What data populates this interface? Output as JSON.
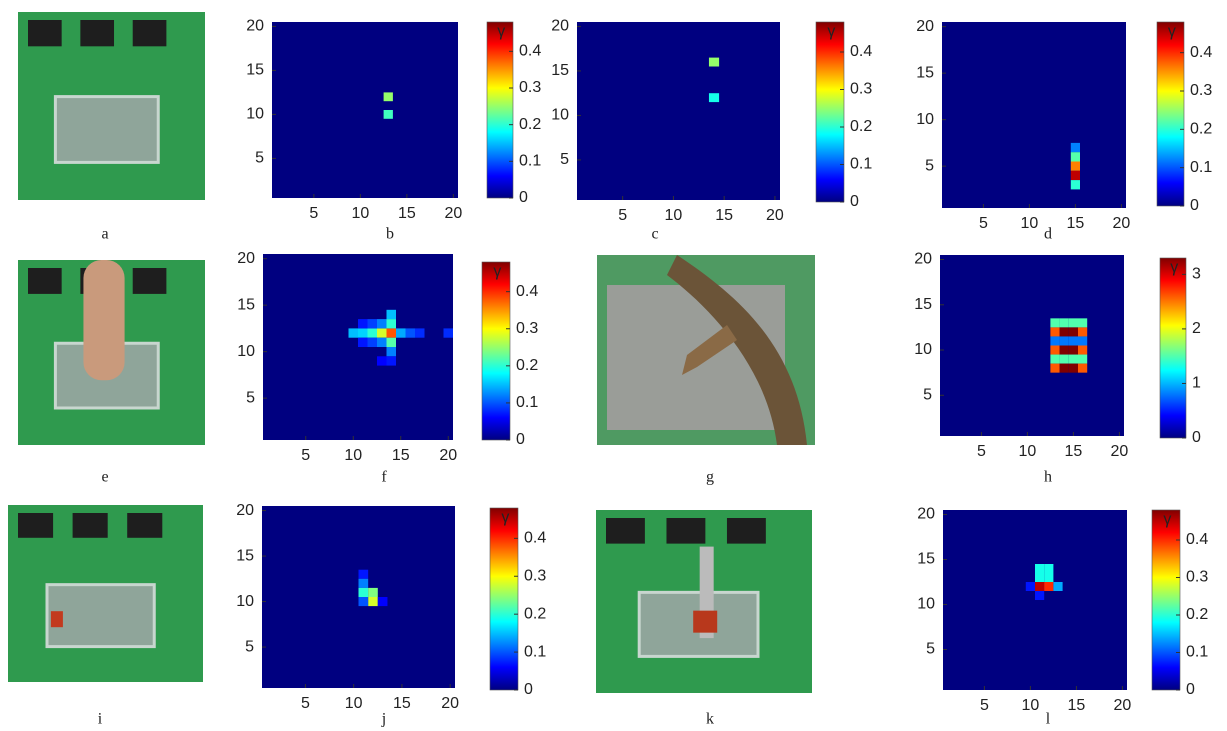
{
  "panels": [
    {
      "label": "a",
      "type": "photo"
    },
    {
      "label": "b",
      "type": "heatmap",
      "xlim": [
        0.5,
        20.5
      ],
      "ylim": [
        0.5,
        20.5
      ],
      "xticks": [
        5,
        10,
        15,
        20
      ],
      "yticks": [
        5,
        10,
        15,
        20
      ],
      "clim": [
        0,
        0.48
      ],
      "cticks": [
        0,
        0.1,
        0.2,
        0.3,
        0.4
      ],
      "colorbar_label": "γ",
      "cells": [
        [
          13,
          12,
          0.25
        ],
        [
          13,
          10,
          0.21
        ]
      ]
    },
    {
      "label": "c",
      "type": "heatmap",
      "xlim": [
        0.5,
        20.5
      ],
      "ylim": [
        0.5,
        20.5
      ],
      "xticks": [
        5,
        10,
        15,
        20
      ],
      "yticks": [
        5,
        10,
        15,
        20
      ],
      "clim": [
        0,
        0.48
      ],
      "cticks": [
        0,
        0.1,
        0.2,
        0.3,
        0.4
      ],
      "colorbar_label": "γ",
      "cells": [
        [
          14,
          16,
          0.25
        ],
        [
          14,
          12,
          0.19
        ]
      ]
    },
    {
      "label": "d",
      "type": "heatmap",
      "xlim": [
        0.5,
        20.5
      ],
      "ylim": [
        0.5,
        20.5
      ],
      "xticks": [
        5,
        10,
        15,
        20
      ],
      "yticks": [
        5,
        10,
        15,
        20
      ],
      "clim": [
        0,
        0.48
      ],
      "cticks": [
        0,
        0.1,
        0.2,
        0.3,
        0.4
      ],
      "colorbar_label": "γ",
      "cells": [
        [
          15,
          7,
          0.12
        ],
        [
          15,
          6,
          0.22
        ],
        [
          15,
          5,
          0.36
        ],
        [
          15,
          4,
          0.45
        ],
        [
          15,
          3,
          0.2
        ]
      ]
    },
    {
      "label": "e",
      "type": "photo"
    },
    {
      "label": "f",
      "type": "heatmap",
      "xlim": [
        0.5,
        20.5
      ],
      "ylim": [
        0.5,
        20.5
      ],
      "xticks": [
        5,
        10,
        15,
        20
      ],
      "yticks": [
        5,
        10,
        15,
        20
      ],
      "clim": [
        0,
        0.48
      ],
      "cticks": [
        0,
        0.1,
        0.2,
        0.3,
        0.4
      ],
      "colorbar_label": "γ",
      "cells": [
        [
          10,
          12,
          0.15
        ],
        [
          11,
          12,
          0.16
        ],
        [
          12,
          12,
          0.2
        ],
        [
          13,
          12,
          0.28
        ],
        [
          14,
          12,
          0.38
        ],
        [
          15,
          12,
          0.14
        ],
        [
          16,
          12,
          0.1
        ],
        [
          17,
          12,
          0.08
        ],
        [
          20,
          12,
          0.08
        ],
        [
          14,
          14,
          0.15
        ],
        [
          14,
          13,
          0.2
        ],
        [
          14,
          11,
          0.22
        ],
        [
          14,
          10,
          0.12
        ],
        [
          13,
          13,
          0.12
        ],
        [
          13,
          11,
          0.12
        ],
        [
          12,
          13,
          0.09
        ],
        [
          12,
          11,
          0.09
        ],
        [
          11,
          13,
          0.07
        ],
        [
          11,
          11,
          0.07
        ],
        [
          14,
          9,
          0.07
        ],
        [
          13,
          9,
          0.06
        ]
      ]
    },
    {
      "label": "g",
      "type": "photo"
    },
    {
      "label": "h",
      "type": "heatmap",
      "xlim": [
        0.5,
        20.5
      ],
      "ylim": [
        0.5,
        20.5
      ],
      "xticks": [
        5,
        10,
        15,
        20
      ],
      "yticks": [
        5,
        10,
        15,
        20
      ],
      "clim": [
        0,
        3.3
      ],
      "cticks": [
        0,
        1,
        2,
        3
      ],
      "colorbar_label": "γ",
      "cells": [
        [
          13,
          13,
          1.5
        ],
        [
          14,
          13,
          1.5
        ],
        [
          15,
          13,
          1.5
        ],
        [
          16,
          13,
          1.5
        ],
        [
          13,
          12,
          2.6
        ],
        [
          14,
          12,
          3.3
        ],
        [
          15,
          12,
          3.3
        ],
        [
          16,
          12,
          2.6
        ],
        [
          13,
          11,
          0.8
        ],
        [
          14,
          11,
          0.8
        ],
        [
          15,
          11,
          0.8
        ],
        [
          16,
          11,
          0.8
        ],
        [
          13,
          10,
          2.6
        ],
        [
          14,
          10,
          3.3
        ],
        [
          15,
          10,
          3.3
        ],
        [
          16,
          10,
          2.6
        ],
        [
          13,
          9,
          1.5
        ],
        [
          14,
          9,
          1.5
        ],
        [
          15,
          9,
          1.5
        ],
        [
          16,
          9,
          1.5
        ],
        [
          13,
          8,
          2.6
        ],
        [
          14,
          8,
          3.3
        ],
        [
          15,
          8,
          3.3
        ],
        [
          16,
          8,
          2.6
        ]
      ]
    },
    {
      "label": "i",
      "type": "photo"
    },
    {
      "label": "j",
      "type": "heatmap",
      "xlim": [
        0.5,
        20.5
      ],
      "ylim": [
        0.5,
        20.5
      ],
      "xticks": [
        5,
        10,
        15,
        20
      ],
      "yticks": [
        5,
        10,
        15,
        20
      ],
      "clim": [
        0,
        0.48
      ],
      "cticks": [
        0,
        0.1,
        0.2,
        0.3,
        0.4
      ],
      "colorbar_label": "γ",
      "cells": [
        [
          11,
          13,
          0.07
        ],
        [
          11,
          12,
          0.12
        ],
        [
          11,
          11,
          0.2
        ],
        [
          12,
          11,
          0.24
        ],
        [
          12,
          10,
          0.28
        ],
        [
          11,
          10,
          0.1
        ],
        [
          13,
          10,
          0.06
        ]
      ]
    },
    {
      "label": "k",
      "type": "photo"
    },
    {
      "label": "l",
      "type": "heatmap",
      "xlim": [
        0.5,
        20.5
      ],
      "ylim": [
        0.5,
        20.5
      ],
      "xticks": [
        5,
        10,
        15,
        20
      ],
      "yticks": [
        5,
        10,
        15,
        20
      ],
      "clim": [
        0,
        0.48
      ],
      "cticks": [
        0,
        0.1,
        0.2,
        0.3,
        0.4
      ],
      "colorbar_label": "γ",
      "cells": [
        [
          11,
          14,
          0.19
        ],
        [
          12,
          14,
          0.19
        ],
        [
          11,
          13,
          0.19
        ],
        [
          12,
          13,
          0.19
        ],
        [
          11,
          12,
          0.45
        ],
        [
          12,
          12,
          0.4
        ],
        [
          13,
          12,
          0.14
        ],
        [
          10,
          12,
          0.07
        ],
        [
          11,
          11,
          0.07
        ]
      ]
    }
  ]
}
